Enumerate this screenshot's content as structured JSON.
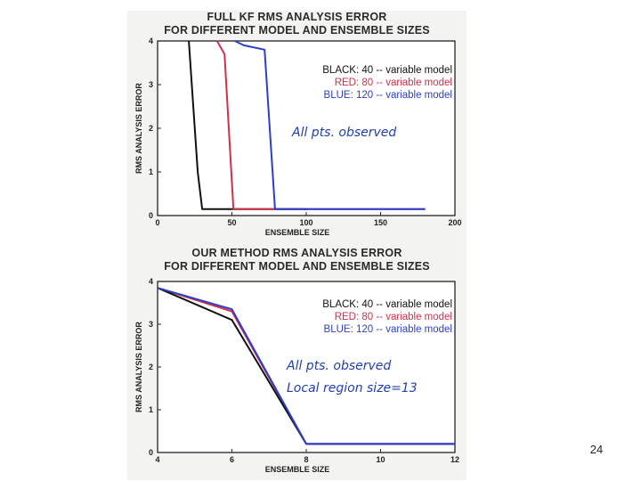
{
  "page_number": "24",
  "chart_data": [
    {
      "type": "line",
      "title": [
        "FULL KF RMS ANALYSIS ERROR",
        "FOR DIFFERENT MODEL AND ENSEMBLE SIZES"
      ],
      "xlabel": "ENSEMBLE SIZE",
      "ylabel": "RMS ANALYSIS ERROR",
      "xlim": [
        0,
        200
      ],
      "ylim": [
        0,
        4
      ],
      "xticks": [
        0,
        50,
        100,
        150,
        200
      ],
      "yticks": [
        0,
        1,
        2,
        3,
        4
      ],
      "legend": [
        {
          "label": "BLACK:  40 -- variable model",
          "color": "#111111"
        },
        {
          "label": "RED:  80 -- variable model",
          "color": "#d0304a"
        },
        {
          "label": "BLUE: 120 -- variable model",
          "color": "#2a3fcc"
        }
      ],
      "annotations": [
        "All pts. observed"
      ],
      "series": [
        {
          "color": "#111111",
          "x": [
            21,
            27,
            30,
            100
          ],
          "y": [
            4,
            1.0,
            0.15,
            0.15
          ]
        },
        {
          "color": "#d0304a",
          "x": [
            40,
            45,
            51,
            180
          ],
          "y": [
            4,
            3.7,
            0.15,
            0.15
          ]
        },
        {
          "color": "#2a3fcc",
          "x": [
            52,
            58,
            72,
            79,
            180
          ],
          "y": [
            4,
            3.9,
            3.8,
            0.15,
            0.15
          ]
        }
      ]
    },
    {
      "type": "line",
      "title": [
        "OUR METHOD RMS ANALYSIS ERROR",
        "FOR DIFFERENT MODEL AND ENSEMBLE SIZES"
      ],
      "xlabel": "ENSEMBLE SIZE",
      "ylabel": "RMS ANALYSIS ERROR",
      "xlim": [
        4,
        12
      ],
      "ylim": [
        0,
        4
      ],
      "xticks": [
        4,
        6,
        8,
        10,
        12
      ],
      "yticks": [
        0,
        1,
        2,
        3,
        4
      ],
      "legend": [
        {
          "label": "BLACK:  40 -- variable model",
          "color": "#111111"
        },
        {
          "label": "RED:  80 -- variable model",
          "color": "#d0304a"
        },
        {
          "label": "BLUE: 120 -- variable model",
          "color": "#2a3fcc"
        }
      ],
      "annotations": [
        "All pts. observed",
        "Local region size=13"
      ],
      "series": [
        {
          "color": "#d0304a",
          "x": [
            4,
            6,
            8,
            12
          ],
          "y": [
            3.85,
            3.3,
            0.2,
            0.2
          ]
        },
        {
          "color": "#111111",
          "x": [
            4,
            6,
            8,
            12
          ],
          "y": [
            3.85,
            3.1,
            0.2,
            0.2
          ]
        },
        {
          "color": "#2a3fcc",
          "x": [
            4,
            6,
            8,
            12
          ],
          "y": [
            3.85,
            3.35,
            0.2,
            0.2
          ]
        }
      ]
    }
  ]
}
